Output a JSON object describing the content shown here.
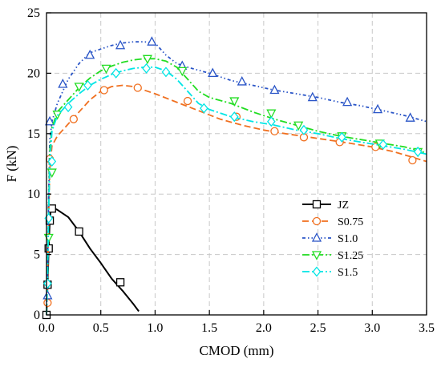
{
  "chart_data": {
    "type": "line",
    "title": "",
    "xlabel": "CMOD (mm)",
    "ylabel": "F (kN)",
    "xlim": [
      0.0,
      3.5
    ],
    "ylim": [
      0,
      25
    ],
    "x_ticks": [
      "0.0",
      "0.5",
      "1.0",
      "1.5",
      "2.0",
      "2.5",
      "3.0",
      "3.5"
    ],
    "y_ticks": [
      "0",
      "5",
      "10",
      "15",
      "20",
      "25"
    ],
    "grid": true,
    "legend_position": "center-right",
    "series": [
      {
        "name": "JZ",
        "color": "#000000",
        "dash": "solid",
        "marker": "square",
        "x": [
          0,
          0.01,
          0.02,
          0.03,
          0.04,
          0.05,
          0.1,
          0.2,
          0.3,
          0.4,
          0.5,
          0.6,
          0.7,
          0.8,
          0.85
        ],
        "y": [
          0,
          2.5,
          5.5,
          7.8,
          8.7,
          8.9,
          8.7,
          8.1,
          6.9,
          5.5,
          4.3,
          3.0,
          2.0,
          0.9,
          0.3
        ],
        "marker_x": [
          0,
          0.01,
          0.02,
          0.03,
          0.05,
          0.3,
          0.68
        ],
        "marker_y": [
          0,
          2.5,
          5.5,
          7.8,
          8.8,
          6.9,
          2.7
        ]
      },
      {
        "name": "S0.75",
        "color": "#f07020",
        "dash": "dashed",
        "marker": "circle",
        "x": [
          0,
          0.01,
          0.02,
          0.03,
          0.05,
          0.1,
          0.2,
          0.3,
          0.4,
          0.5,
          0.6,
          0.7,
          0.8,
          0.9,
          1.0,
          1.2,
          1.4,
          1.6,
          1.8,
          2.0,
          2.2,
          2.5,
          2.8,
          3.0,
          3.2,
          3.5
        ],
        "y": [
          0,
          3.0,
          8.0,
          12.0,
          14.0,
          14.8,
          15.8,
          16.8,
          17.8,
          18.5,
          18.9,
          19.0,
          18.9,
          18.6,
          18.3,
          17.6,
          16.9,
          16.2,
          15.7,
          15.3,
          15.0,
          14.6,
          14.2,
          13.9,
          13.5,
          12.7
        ],
        "marker_x": [
          0.01,
          0.03,
          0.25,
          0.53,
          0.84,
          1.3,
          1.75,
          2.1,
          2.37,
          2.7,
          3.03,
          3.37
        ],
        "marker_y": [
          1.0,
          12.9,
          16.2,
          18.6,
          18.8,
          17.7,
          16.4,
          15.2,
          14.7,
          14.3,
          13.9,
          12.8
        ]
      },
      {
        "name": "S1.0",
        "color": "#2a55c7",
        "dash": "dashdotdot",
        "marker": "triangle-up",
        "x": [
          0,
          0.01,
          0.02,
          0.03,
          0.05,
          0.1,
          0.2,
          0.3,
          0.4,
          0.5,
          0.6,
          0.7,
          0.8,
          0.9,
          1.0,
          1.1,
          1.2,
          1.3,
          1.5,
          1.7,
          1.9,
          2.1,
          2.3,
          2.5,
          2.7,
          2.9,
          3.1,
          3.3,
          3.5
        ],
        "y": [
          0,
          4.0,
          10.0,
          14.5,
          16.0,
          17.5,
          19.5,
          20.8,
          21.7,
          22.0,
          22.3,
          22.5,
          22.6,
          22.6,
          22.5,
          21.5,
          20.8,
          20.5,
          20.0,
          19.4,
          19.0,
          18.6,
          18.3,
          18.0,
          17.6,
          17.3,
          16.9,
          16.5,
          16.0
        ],
        "marker_x": [
          0.01,
          0.03,
          0.15,
          0.4,
          0.68,
          0.97,
          1.25,
          1.53,
          1.8,
          2.1,
          2.45,
          2.77,
          3.05,
          3.35
        ],
        "marker_y": [
          1.6,
          16.0,
          19.1,
          21.5,
          22.3,
          22.6,
          20.6,
          20.0,
          19.3,
          18.6,
          18.0,
          17.6,
          17.0,
          16.3
        ]
      },
      {
        "name": "S1.25",
        "color": "#22dd22",
        "dash": "dashdot",
        "marker": "triangle-down",
        "x": [
          0,
          0.01,
          0.02,
          0.03,
          0.05,
          0.1,
          0.2,
          0.3,
          0.4,
          0.5,
          0.6,
          0.7,
          0.8,
          0.9,
          1.0,
          1.1,
          1.2,
          1.3,
          1.4,
          1.5,
          1.7,
          1.9,
          2.1,
          2.3,
          2.5,
          2.7,
          2.9,
          3.1,
          3.3,
          3.5
        ],
        "y": [
          0,
          3.5,
          9.0,
          13.5,
          15.5,
          16.8,
          17.8,
          18.8,
          19.6,
          20.2,
          20.6,
          20.9,
          21.1,
          21.2,
          21.2,
          21.0,
          20.5,
          19.5,
          18.5,
          18.0,
          17.5,
          16.8,
          16.2,
          15.7,
          15.2,
          14.8,
          14.5,
          14.2,
          13.9,
          13.4
        ],
        "marker_x": [
          0.02,
          0.05,
          0.1,
          0.3,
          0.55,
          0.93,
          1.25,
          1.73,
          2.07,
          2.32,
          2.72,
          3.07,
          3.42
        ],
        "marker_y": [
          6.4,
          11.8,
          16.6,
          18.9,
          20.4,
          21.2,
          20.2,
          17.7,
          16.7,
          15.7,
          14.8,
          14.2,
          13.5
        ]
      },
      {
        "name": "S1.5",
        "color": "#00e5e5",
        "dash": "dashdot",
        "marker": "diamond",
        "x": [
          0,
          0.01,
          0.02,
          0.03,
          0.05,
          0.1,
          0.2,
          0.3,
          0.4,
          0.5,
          0.6,
          0.7,
          0.8,
          0.9,
          1.0,
          1.1,
          1.2,
          1.3,
          1.4,
          1.5,
          1.7,
          1.9,
          2.1,
          2.3,
          2.5,
          2.7,
          2.9,
          3.1,
          3.3,
          3.5
        ],
        "y": [
          0,
          3.2,
          8.5,
          12.5,
          15.2,
          16.5,
          17.5,
          18.3,
          19.0,
          19.5,
          19.9,
          20.2,
          20.4,
          20.5,
          20.5,
          20.2,
          19.5,
          18.5,
          17.5,
          17.0,
          16.4,
          16.0,
          15.7,
          15.3,
          15.0,
          14.6,
          14.3,
          14.0,
          13.7,
          13.3
        ],
        "marker_x": [
          0.01,
          0.02,
          0.05,
          0.2,
          0.38,
          0.64,
          0.92,
          1.1,
          1.45,
          1.73,
          2.07,
          2.37,
          2.72,
          3.1,
          3.42
        ],
        "marker_y": [
          2.6,
          8.0,
          12.7,
          17.2,
          19.0,
          20.0,
          20.4,
          20.1,
          17.1,
          16.4,
          16.0,
          15.3,
          14.7,
          14.1,
          13.5
        ]
      }
    ]
  }
}
